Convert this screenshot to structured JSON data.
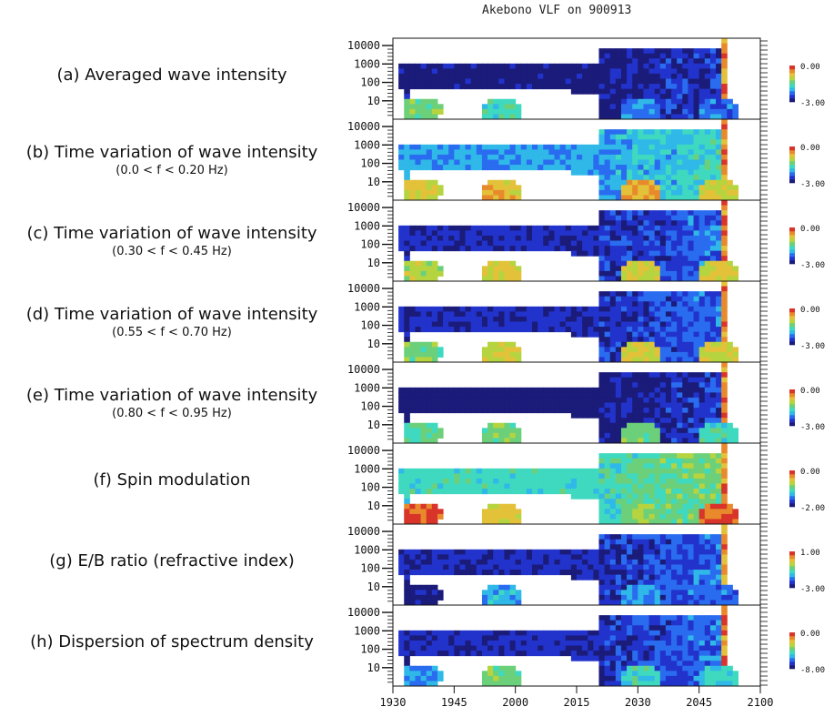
{
  "title": "Akebono VLF on 900913",
  "chart_data": {
    "type": "heatmap",
    "title": "Akebono VLF on 900913",
    "x_ticks": [
      "1930",
      "1945",
      "2000",
      "2015",
      "2030",
      "2045",
      "2100"
    ],
    "y_ticks": [
      "10000",
      "1000",
      "100",
      "10"
    ],
    "y_scale": "log",
    "panels": [
      {
        "label": "(a) Averaged wave intensity",
        "sublabel": "",
        "cbar_max": "0.00",
        "cbar_min": "-3.00",
        "base_level": 0.05,
        "bursts": [
          [
            0.07,
            0.55
          ],
          [
            0.29,
            0.45
          ],
          [
            0.67,
            0.3
          ],
          [
            0.88,
            0.25
          ]
        ]
      },
      {
        "label": "(b) Time variation of wave intensity",
        "sublabel": "(0.0 < f < 0.20 Hz)",
        "cbar_max": "0.00",
        "cbar_min": "-3.00",
        "base_level": 0.32,
        "bursts": [
          [
            0.07,
            0.7
          ],
          [
            0.29,
            0.75
          ],
          [
            0.67,
            0.8
          ],
          [
            0.88,
            0.7
          ]
        ]
      },
      {
        "label": "(c) Time variation of wave intensity",
        "sublabel": "(0.30 < f < 0.45 Hz)",
        "cbar_max": "0.00",
        "cbar_min": "-3.00",
        "base_level": 0.12,
        "bursts": [
          [
            0.07,
            0.65
          ],
          [
            0.29,
            0.7
          ],
          [
            0.67,
            0.72
          ],
          [
            0.88,
            0.7
          ]
        ]
      },
      {
        "label": "(d) Time variation of wave intensity",
        "sublabel": "(0.55 < f < 0.70 Hz)",
        "cbar_max": "0.00",
        "cbar_min": "-3.00",
        "base_level": 0.12,
        "bursts": [
          [
            0.07,
            0.55
          ],
          [
            0.29,
            0.7
          ],
          [
            0.67,
            0.72
          ],
          [
            0.88,
            0.7
          ]
        ]
      },
      {
        "label": "(e) Time variation of wave intensity",
        "sublabel": "(0.80 < f < 0.95 Hz)",
        "cbar_max": "0.00",
        "cbar_min": "-3.00",
        "base_level": 0.04,
        "bursts": [
          [
            0.07,
            0.5
          ],
          [
            0.29,
            0.55
          ],
          [
            0.67,
            0.55
          ],
          [
            0.88,
            0.45
          ]
        ]
      },
      {
        "label": "(f) Spin modulation",
        "sublabel": "",
        "cbar_max": "0.00",
        "cbar_min": "-2.00",
        "base_level": 0.45,
        "bursts": [
          [
            0.07,
            0.92
          ],
          [
            0.29,
            0.72
          ],
          [
            0.67,
            0.6
          ],
          [
            0.88,
            0.95
          ]
        ]
      },
      {
        "label": "(g) E/B ratio (refractive index)",
        "sublabel": "",
        "cbar_max": "1.00",
        "cbar_min": "-3.00",
        "base_level": 0.12,
        "bursts": [
          [
            0.07,
            0.05
          ],
          [
            0.29,
            0.35
          ],
          [
            0.67,
            0.3
          ],
          [
            0.88,
            0.25
          ]
        ]
      },
      {
        "label": "(h) Dispersion of spectrum density",
        "sublabel": "",
        "cbar_max": "0.00",
        "cbar_min": "-8.00",
        "base_level": 0.12,
        "bursts": [
          [
            0.07,
            0.3
          ],
          [
            0.29,
            0.55
          ],
          [
            0.67,
            0.45
          ],
          [
            0.88,
            0.4
          ]
        ]
      }
    ],
    "colormap": [
      "#1b1b7a",
      "#2233cc",
      "#2a6cf0",
      "#2fb8e8",
      "#3fd9c0",
      "#6cd07a",
      "#b6d43f",
      "#e3c23a",
      "#e88a2c",
      "#d8342a"
    ]
  }
}
